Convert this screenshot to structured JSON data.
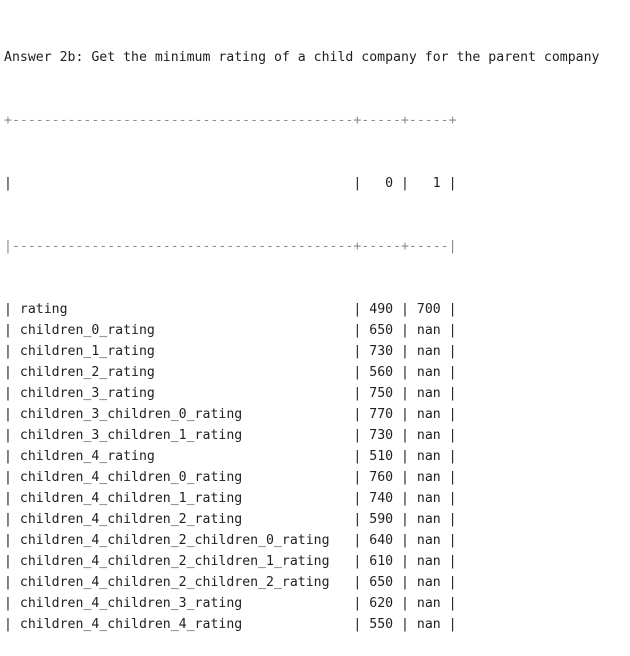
{
  "header_text": "Answer 2b: Get the minimum rating of a child company for the parent company",
  "table": {
    "top_border": "+-------------------------------------------+-----+-----+",
    "header_row": "|                                           |   0 |   1 |",
    "header_separator": "|-------------------------------------------+-----+-----|",
    "columns": [
      "",
      "0",
      "1"
    ],
    "rows": [
      {
        "label": "rating",
        "c0": "490",
        "c1": "700"
      },
      {
        "label": "children_0_rating",
        "c0": "650",
        "c1": "nan"
      },
      {
        "label": "children_1_rating",
        "c0": "730",
        "c1": "nan"
      },
      {
        "label": "children_2_rating",
        "c0": "560",
        "c1": "nan"
      },
      {
        "label": "children_3_rating",
        "c0": "750",
        "c1": "nan"
      },
      {
        "label": "children_3_children_0_rating",
        "c0": "770",
        "c1": "nan"
      },
      {
        "label": "children_3_children_1_rating",
        "c0": "730",
        "c1": "nan"
      },
      {
        "label": "children_4_rating",
        "c0": "510",
        "c1": "nan"
      },
      {
        "label": "children_4_children_0_rating",
        "c0": "760",
        "c1": "nan"
      },
      {
        "label": "children_4_children_1_rating",
        "c0": "740",
        "c1": "nan"
      },
      {
        "label": "children_4_children_2_rating",
        "c0": "590",
        "c1": "nan"
      },
      {
        "label": "children_4_children_2_children_0_rating",
        "c0": "640",
        "c1": "nan"
      },
      {
        "label": "children_4_children_2_children_1_rating",
        "c0": "610",
        "c1": "nan"
      },
      {
        "label": "children_4_children_2_children_2_rating",
        "c0": "650",
        "c1": "nan"
      },
      {
        "label": "children_4_children_3_rating",
        "c0": "620",
        "c1": "nan"
      },
      {
        "label": "children_4_children_4_rating",
        "c0": "550",
        "c1": "nan"
      }
    ]
  }
}
